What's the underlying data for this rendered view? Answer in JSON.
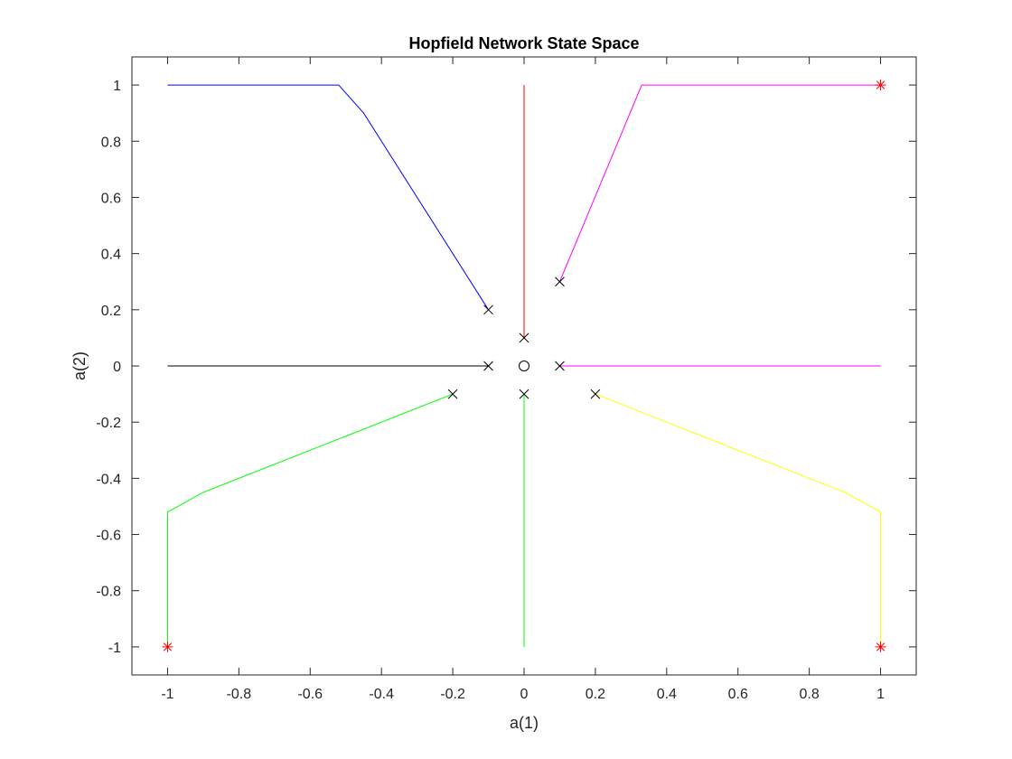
{
  "chart_data": {
    "type": "line",
    "title": "Hopfield Network State Space",
    "xlabel": "a(1)",
    "ylabel": "a(2)",
    "xlim": [
      -1.1,
      1.1
    ],
    "ylim": [
      -1.1,
      1.1
    ],
    "xticks": [
      -1,
      -0.8,
      -0.6,
      -0.4,
      -0.2,
      0,
      0.2,
      0.4,
      0.6,
      0.8,
      1
    ],
    "xtick_labels": [
      "-1",
      "-0.8",
      "-0.6",
      "-0.4",
      "-0.2",
      "0",
      "0.2",
      "0.4",
      "0.6",
      "0.8",
      "1"
    ],
    "yticks": [
      -1,
      -0.8,
      -0.6,
      -0.4,
      -0.2,
      0,
      0.2,
      0.4,
      0.6,
      0.8,
      1
    ],
    "ytick_labels": [
      "-1",
      "-0.8",
      "-0.6",
      "-0.4",
      "-0.2",
      "0",
      "0.2",
      "0.4",
      "0.6",
      "0.8",
      "1"
    ],
    "grid": false,
    "box": true,
    "series": [
      {
        "color": "#0000ff",
        "x": [
          -0.1,
          -0.45,
          -0.52,
          -1.0
        ],
        "y": [
          0.2,
          0.9,
          1.0,
          1.0
        ]
      },
      {
        "color": "#ff0000",
        "x": [
          0,
          0
        ],
        "y": [
          0.1,
          1.0
        ]
      },
      {
        "color": "#ff00ff",
        "x": [
          0.1,
          0.33,
          0.4,
          1.0
        ],
        "y": [
          0.3,
          1.0,
          1.0,
          1.0
        ]
      },
      {
        "color": "#000000",
        "x": [
          -0.1,
          -1.0
        ],
        "y": [
          0,
          0
        ]
      },
      {
        "color": "#ff00ff",
        "x": [
          0.1,
          1.0
        ],
        "y": [
          0,
          0
        ]
      },
      {
        "color": "#00ff00",
        "x": [
          -0.2,
          -0.9,
          -1.0,
          -1.0
        ],
        "y": [
          -0.1,
          -0.45,
          -0.52,
          -1.0
        ]
      },
      {
        "color": "#00ff00",
        "x": [
          0,
          0
        ],
        "y": [
          -0.1,
          -1.0
        ]
      },
      {
        "color": "#ffff00",
        "x": [
          0.2,
          0.9,
          1.0,
          1.0
        ],
        "y": [
          -0.1,
          -0.45,
          -0.52,
          -1.0
        ]
      }
    ],
    "start_points": {
      "marker": "x",
      "color": "#000000",
      "x": [
        -0.1,
        0,
        0.1,
        -0.1,
        0.1,
        -0.2,
        0,
        0.2
      ],
      "y": [
        0.2,
        0.1,
        0.3,
        0,
        0,
        -0.1,
        -0.1,
        -0.1
      ]
    },
    "end_points": {
      "marker": "*",
      "color": "#ff0000",
      "x": [
        1,
        1,
        -1
      ],
      "y": [
        1,
        -1,
        -1
      ]
    },
    "origin_point": {
      "marker": "o",
      "color": "#000000",
      "x": 0,
      "y": 0
    }
  }
}
